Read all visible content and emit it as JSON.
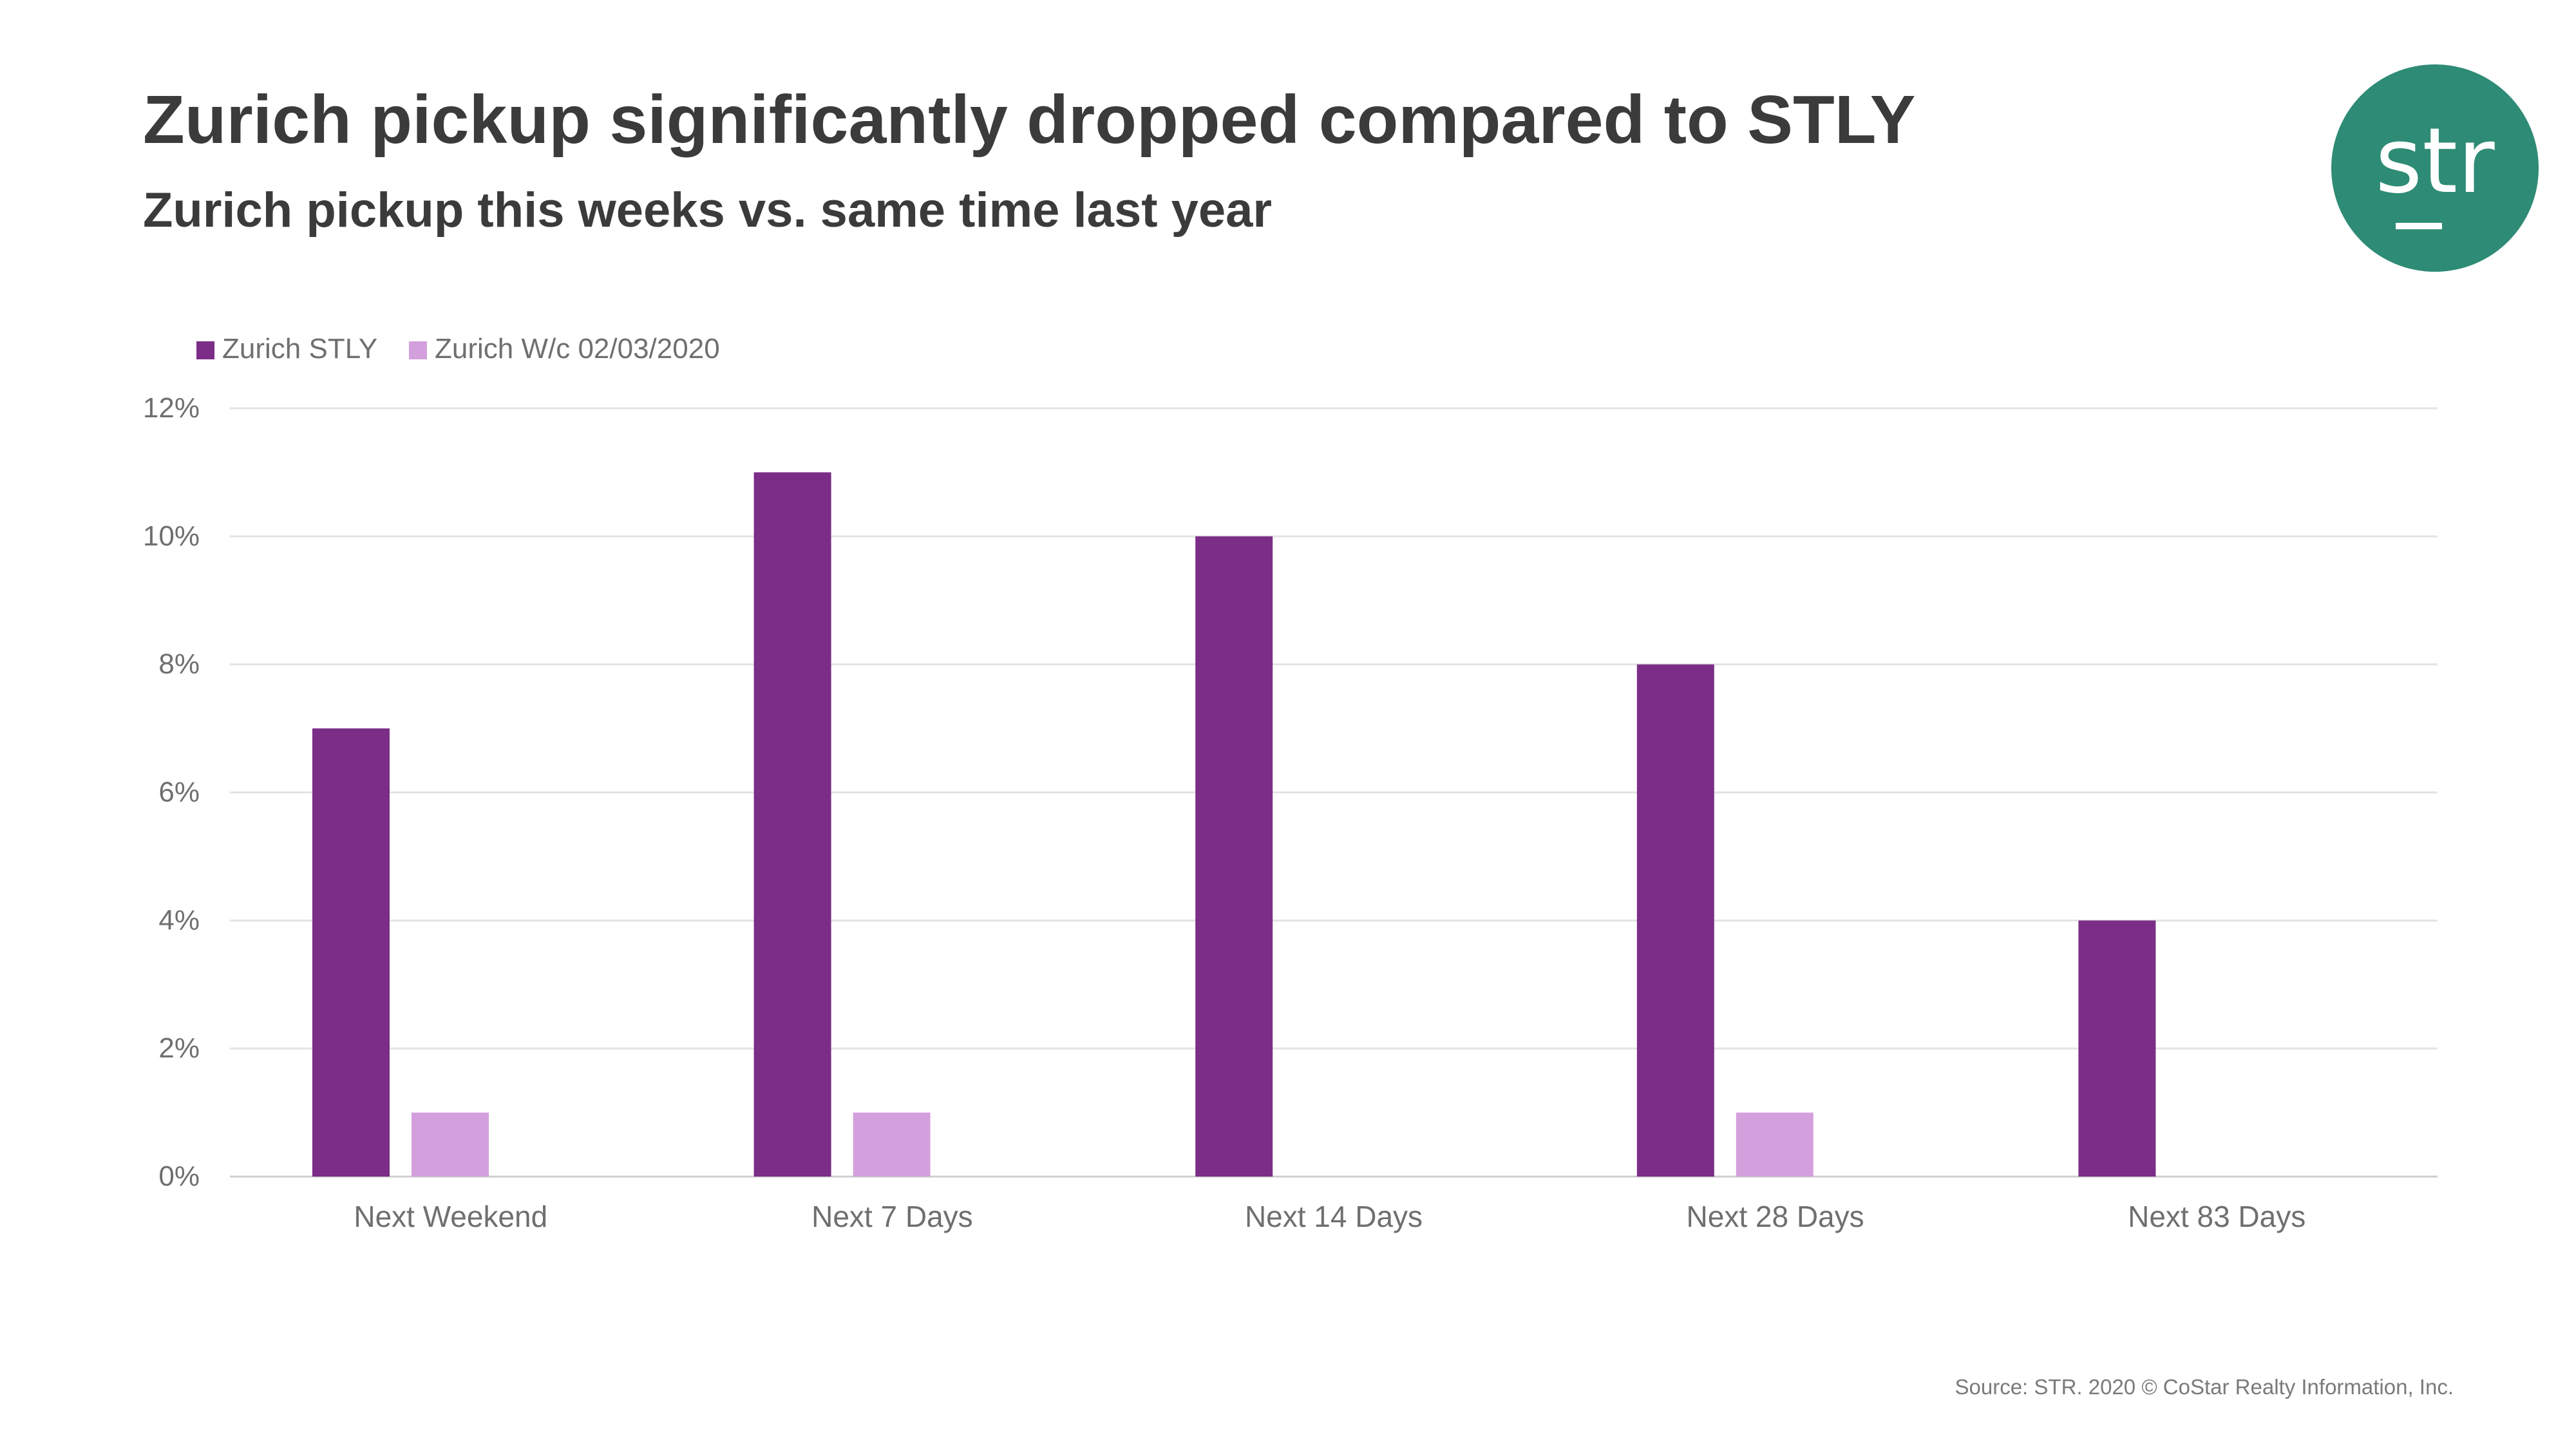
{
  "header": {
    "title": "Zurich pickup significantly dropped compared to STLY",
    "subtitle": "Zurich pickup this weeks vs. same time last year"
  },
  "logo": {
    "text": "str",
    "color": "#2e8b75"
  },
  "footer": {
    "source": "Source: STR. 2020 © CoStar Realty Information, Inc."
  },
  "chart_data": {
    "type": "bar",
    "title": "Zurich pickup significantly dropped compared to STLY",
    "subtitle": "Zurich pickup this weeks vs. same time last year",
    "categories": [
      "Next  Weekend",
      "Next 7 Days",
      "Next 14 Days",
      "Next 28 Days",
      "Next 83 Days"
    ],
    "series": [
      {
        "name": "Zurich STLY",
        "color": "#7b2d87",
        "values": [
          7,
          11,
          10,
          8,
          4
        ]
      },
      {
        "name": "Zurich W/c 02/03/2020",
        "color": "#d3a0dd",
        "values": [
          1,
          1,
          0,
          1,
          0
        ]
      }
    ],
    "ylim": [
      0,
      12
    ],
    "yticks": [
      0,
      2,
      4,
      6,
      8,
      10,
      12
    ],
    "ytick_labels": [
      "0%",
      "2%",
      "4%",
      "6%",
      "8%",
      "10%",
      "12%"
    ],
    "grid": true,
    "legend_position": "top-left",
    "xlabel": "",
    "ylabel": ""
  }
}
